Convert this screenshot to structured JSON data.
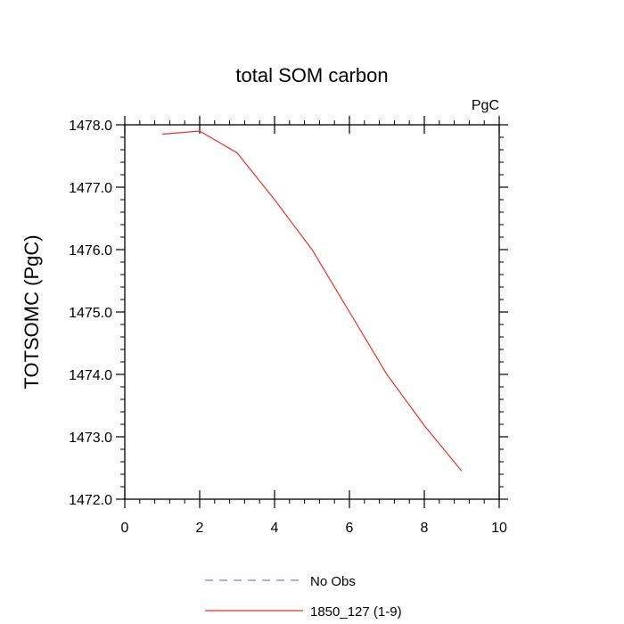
{
  "chart_data": {
    "type": "line",
    "title": "total SOM carbon",
    "units_label": "PgC",
    "xlabel": "",
    "ylabel": "TOTSOMC  (PgC)",
    "xlim": [
      0,
      10
    ],
    "ylim": [
      1472.0,
      1478.0
    ],
    "x_ticks": [
      0,
      2,
      4,
      6,
      8,
      10
    ],
    "x_tick_labels": [
      "0",
      "2",
      "4",
      "6",
      "8",
      "10"
    ],
    "y_ticks": [
      1472.0,
      1473.0,
      1474.0,
      1475.0,
      1476.0,
      1477.0,
      1478.0
    ],
    "y_tick_labels": [
      "1472.0",
      "1473.0",
      "1474.0",
      "1475.0",
      "1476.0",
      "1477.0",
      "1478.0"
    ],
    "grid": false,
    "legend_position": "bottom",
    "series": [
      {
        "name": "No Obs",
        "color": "#7b7bd9",
        "style": "dashed",
        "x": [],
        "values": []
      },
      {
        "name": "1850_127 (1-9)",
        "color": "#e8322e",
        "style": "solid",
        "x": [
          1,
          2,
          3,
          4,
          5,
          6,
          7,
          8,
          9
        ],
        "values": [
          1477.85,
          1477.9,
          1477.55,
          1476.8,
          1476.0,
          1475.0,
          1474.0,
          1473.18,
          1472.45
        ]
      }
    ]
  }
}
